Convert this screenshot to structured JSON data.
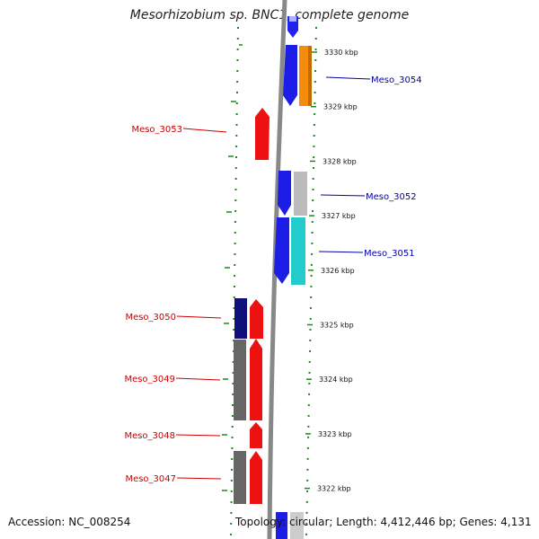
{
  "title": "Mesorhizobium sp. BNC1, complete genome",
  "footer": {
    "accession": "Accession: NC_008254",
    "summary": "Topology: circular; Length: 4,412,446 bp; Genes: 4,131"
  },
  "colors": {
    "forward_label": "#cc0000",
    "reverse_label": "#0000aa",
    "tick": "#1a8a1a",
    "axis": "#888888"
  },
  "scale": {
    "unit": "kbp",
    "ticks": [
      {
        "kbp": 3330,
        "label": "3330 kbp"
      },
      {
        "kbp": 3329,
        "label": "3329 kbp"
      },
      {
        "kbp": 3328,
        "label": "3328 kbp"
      },
      {
        "kbp": 3327,
        "label": "3327 kbp"
      },
      {
        "kbp": 3326,
        "label": "3326 kbp"
      },
      {
        "kbp": 3325,
        "label": "3325 kbp"
      },
      {
        "kbp": 3324,
        "label": "3324 kbp"
      },
      {
        "kbp": 3323,
        "label": "3323 kbp"
      },
      {
        "kbp": 3322,
        "label": "3322 kbp"
      }
    ]
  },
  "gene_labels": [
    {
      "id": "Meso_3054",
      "strand": "reverse"
    },
    {
      "id": "Meso_3053",
      "strand": "forward"
    },
    {
      "id": "Meso_3052",
      "strand": "reverse"
    },
    {
      "id": "Meso_3051",
      "strand": "reverse"
    },
    {
      "id": "Meso_3050",
      "strand": "forward"
    },
    {
      "id": "Meso_3049",
      "strand": "forward"
    },
    {
      "id": "Meso_3048",
      "strand": "forward"
    },
    {
      "id": "Meso_3047",
      "strand": "forward"
    }
  ]
}
